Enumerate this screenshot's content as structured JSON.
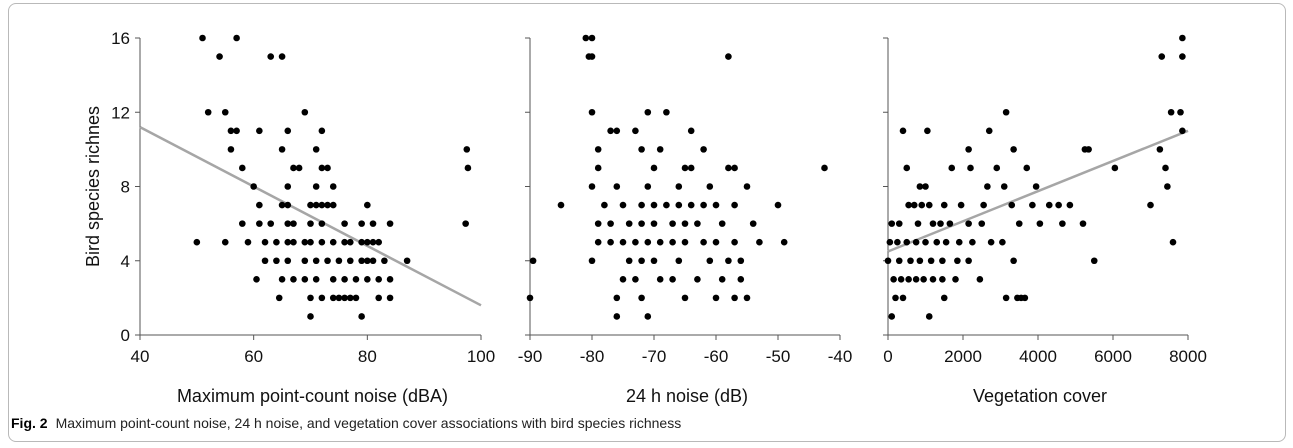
{
  "figure": {
    "caption_label": "Fig. 2",
    "caption_text": "Maximum point-count noise, 24 h noise, and vegetation cover associations with bird species richness"
  },
  "chart_data": [
    {
      "type": "scatter",
      "title": "",
      "xlabel": "Maximum point-count noise (dBA)",
      "ylabel": "Bird species richnes",
      "xlim": [
        40,
        100
      ],
      "ylim": [
        0,
        16
      ],
      "xticks": [
        40,
        60,
        80,
        100
      ],
      "yticks": [
        0,
        4,
        8,
        12,
        16
      ],
      "trend_line": [
        [
          40,
          11.2
        ],
        [
          100,
          1.6
        ]
      ],
      "colors": {
        "points": "#000000",
        "trend": "#a6a6a6"
      },
      "points": [
        [
          51,
          16
        ],
        [
          57,
          16
        ],
        [
          54,
          15
        ],
        [
          63,
          15
        ],
        [
          65,
          15
        ],
        [
          52,
          12
        ],
        [
          55,
          12
        ],
        [
          69,
          12
        ],
        [
          56,
          11
        ],
        [
          57,
          11
        ],
        [
          61,
          11
        ],
        [
          66,
          11
        ],
        [
          72,
          11
        ],
        [
          56,
          10
        ],
        [
          65,
          10
        ],
        [
          71,
          10
        ],
        [
          97.5,
          10
        ],
        [
          58,
          9
        ],
        [
          67,
          9
        ],
        [
          68,
          9
        ],
        [
          72,
          9
        ],
        [
          73,
          9
        ],
        [
          97.7,
          9
        ],
        [
          60,
          8
        ],
        [
          66,
          8
        ],
        [
          71,
          8
        ],
        [
          74,
          8
        ],
        [
          61,
          7
        ],
        [
          65,
          7
        ],
        [
          66,
          7
        ],
        [
          70,
          7
        ],
        [
          71,
          7
        ],
        [
          72,
          7
        ],
        [
          73,
          7
        ],
        [
          74,
          7
        ],
        [
          80,
          7
        ],
        [
          58,
          6
        ],
        [
          61,
          6
        ],
        [
          63,
          6
        ],
        [
          66,
          6
        ],
        [
          67,
          6
        ],
        [
          70,
          6
        ],
        [
          72,
          6
        ],
        [
          76,
          6
        ],
        [
          79,
          6
        ],
        [
          81,
          6
        ],
        [
          84,
          6
        ],
        [
          97.3,
          6
        ],
        [
          50,
          5
        ],
        [
          55,
          5
        ],
        [
          59,
          5
        ],
        [
          62,
          5
        ],
        [
          64,
          5
        ],
        [
          66,
          5
        ],
        [
          67,
          5
        ],
        [
          69,
          5
        ],
        [
          70,
          5
        ],
        [
          72,
          5
        ],
        [
          74,
          5
        ],
        [
          76,
          5
        ],
        [
          77,
          5
        ],
        [
          79,
          5
        ],
        [
          80,
          5
        ],
        [
          81,
          5
        ],
        [
          82,
          5
        ],
        [
          62,
          4
        ],
        [
          64,
          4
        ],
        [
          66,
          4
        ],
        [
          69,
          4
        ],
        [
          71,
          4
        ],
        [
          73,
          4
        ],
        [
          75,
          4
        ],
        [
          77,
          4
        ],
        [
          79,
          4
        ],
        [
          80,
          4
        ],
        [
          81,
          4
        ],
        [
          83,
          4
        ],
        [
          87,
          4
        ],
        [
          60.5,
          3
        ],
        [
          65,
          3
        ],
        [
          67,
          3
        ],
        [
          69,
          3
        ],
        [
          71,
          3
        ],
        [
          74,
          3
        ],
        [
          76,
          3
        ],
        [
          78,
          3
        ],
        [
          80,
          3
        ],
        [
          82,
          3
        ],
        [
          84,
          3
        ],
        [
          64.5,
          2
        ],
        [
          70,
          2
        ],
        [
          72,
          2
        ],
        [
          74,
          2
        ],
        [
          75,
          2
        ],
        [
          76,
          2
        ],
        [
          77,
          2
        ],
        [
          78,
          2
        ],
        [
          82,
          2
        ],
        [
          84,
          2
        ],
        [
          70,
          1
        ],
        [
          79,
          1
        ]
      ]
    },
    {
      "type": "scatter",
      "title": "",
      "xlabel": "24 h noise (dB)",
      "ylabel": "",
      "xlim": [
        -90,
        -40
      ],
      "ylim": [
        0,
        16
      ],
      "xticks": [
        -90,
        -80,
        -70,
        -60,
        -50,
        -40
      ],
      "yticks": [
        0,
        4,
        8,
        12,
        16
      ],
      "colors": {
        "points": "#000000"
      },
      "points": [
        [
          -81,
          16
        ],
        [
          -80,
          16
        ],
        [
          -80.5,
          15
        ],
        [
          -80,
          15
        ],
        [
          -58,
          15
        ],
        [
          -80,
          12
        ],
        [
          -71,
          12
        ],
        [
          -68,
          12
        ],
        [
          -77,
          11
        ],
        [
          -76,
          11
        ],
        [
          -73,
          11
        ],
        [
          -64,
          11
        ],
        [
          -79,
          10
        ],
        [
          -72,
          10
        ],
        [
          -69,
          10
        ],
        [
          -62,
          10
        ],
        [
          -79,
          9
        ],
        [
          -70,
          9
        ],
        [
          -65,
          9
        ],
        [
          -64,
          9
        ],
        [
          -58,
          9
        ],
        [
          -57,
          9
        ],
        [
          -42.5,
          9
        ],
        [
          -80,
          8
        ],
        [
          -76,
          8
        ],
        [
          -71,
          8
        ],
        [
          -66,
          8
        ],
        [
          -61,
          8
        ],
        [
          -55,
          8
        ],
        [
          -85,
          7
        ],
        [
          -78,
          7
        ],
        [
          -75,
          7
        ],
        [
          -72,
          7
        ],
        [
          -70,
          7
        ],
        [
          -68,
          7
        ],
        [
          -66,
          7
        ],
        [
          -64,
          7
        ],
        [
          -62,
          7
        ],
        [
          -60,
          7
        ],
        [
          -57,
          7
        ],
        [
          -50,
          7
        ],
        [
          -79,
          6
        ],
        [
          -77,
          6
        ],
        [
          -74,
          6
        ],
        [
          -72,
          6
        ],
        [
          -70,
          6
        ],
        [
          -67,
          6
        ],
        [
          -65,
          6
        ],
        [
          -63,
          6
        ],
        [
          -59,
          6
        ],
        [
          -54,
          6
        ],
        [
          -79,
          5
        ],
        [
          -77,
          5
        ],
        [
          -75,
          5
        ],
        [
          -73,
          5
        ],
        [
          -71,
          5
        ],
        [
          -69,
          5
        ],
        [
          -67,
          5
        ],
        [
          -65,
          5
        ],
        [
          -62,
          5
        ],
        [
          -60,
          5
        ],
        [
          -57,
          5
        ],
        [
          -53,
          5
        ],
        [
          -49,
          5
        ],
        [
          -89.5,
          4
        ],
        [
          -80,
          4
        ],
        [
          -74,
          4
        ],
        [
          -72,
          4
        ],
        [
          -70,
          4
        ],
        [
          -66,
          4
        ],
        [
          -61,
          4
        ],
        [
          -58,
          4
        ],
        [
          -56,
          4
        ],
        [
          -75,
          3
        ],
        [
          -73,
          3
        ],
        [
          -69,
          3
        ],
        [
          -67,
          3
        ],
        [
          -63,
          3
        ],
        [
          -59,
          3
        ],
        [
          -56,
          3
        ],
        [
          -90,
          2
        ],
        [
          -76,
          2
        ],
        [
          -72,
          2
        ],
        [
          -65,
          2
        ],
        [
          -60,
          2
        ],
        [
          -57,
          2
        ],
        [
          -55,
          2
        ],
        [
          -76,
          1
        ],
        [
          -71,
          1
        ]
      ]
    },
    {
      "type": "scatter",
      "title": "",
      "xlabel": "Vegetation cover",
      "ylabel": "",
      "xlim": [
        0,
        8000
      ],
      "ylim": [
        0,
        16
      ],
      "xticks": [
        0,
        2000,
        4000,
        6000,
        8000
      ],
      "yticks": [
        0,
        4,
        8,
        12,
        16
      ],
      "trend_line": [
        [
          0,
          4.5
        ],
        [
          8000,
          11.0
        ]
      ],
      "colors": {
        "points": "#000000",
        "trend": "#a6a6a6"
      },
      "points": [
        [
          7850,
          16
        ],
        [
          7300,
          15
        ],
        [
          7850,
          15
        ],
        [
          7550,
          12
        ],
        [
          7800,
          12
        ],
        [
          3150,
          12
        ],
        [
          7850,
          11
        ],
        [
          400,
          11
        ],
        [
          1050,
          11
        ],
        [
          2700,
          11
        ],
        [
          7250,
          10
        ],
        [
          2150,
          10
        ],
        [
          3350,
          10
        ],
        [
          5250,
          10
        ],
        [
          5350,
          10
        ],
        [
          500,
          9
        ],
        [
          1700,
          9
        ],
        [
          2200,
          9
        ],
        [
          2900,
          9
        ],
        [
          3700,
          9
        ],
        [
          6050,
          9
        ],
        [
          7400,
          9
        ],
        [
          850,
          8
        ],
        [
          1000,
          8
        ],
        [
          2650,
          8
        ],
        [
          3100,
          8
        ],
        [
          3950,
          8
        ],
        [
          7450,
          8
        ],
        [
          550,
          7
        ],
        [
          700,
          7
        ],
        [
          900,
          7
        ],
        [
          1100,
          7
        ],
        [
          1500,
          7
        ],
        [
          1950,
          7
        ],
        [
          2550,
          7
        ],
        [
          3300,
          7
        ],
        [
          3850,
          7
        ],
        [
          4300,
          7
        ],
        [
          4550,
          7
        ],
        [
          4850,
          7
        ],
        [
          7000,
          7
        ],
        [
          100,
          6
        ],
        [
          300,
          6
        ],
        [
          800,
          6
        ],
        [
          1200,
          6
        ],
        [
          1400,
          6
        ],
        [
          1650,
          6
        ],
        [
          2150,
          6
        ],
        [
          2500,
          6
        ],
        [
          3500,
          6
        ],
        [
          4050,
          6
        ],
        [
          4650,
          6
        ],
        [
          5200,
          6
        ],
        [
          50,
          5
        ],
        [
          250,
          5
        ],
        [
          500,
          5
        ],
        [
          750,
          5
        ],
        [
          1000,
          5
        ],
        [
          1300,
          5
        ],
        [
          1550,
          5
        ],
        [
          1900,
          5
        ],
        [
          2250,
          5
        ],
        [
          2750,
          5
        ],
        [
          3050,
          5
        ],
        [
          7600,
          5
        ],
        [
          0,
          4
        ],
        [
          300,
          4
        ],
        [
          600,
          4
        ],
        [
          850,
          4
        ],
        [
          1150,
          4
        ],
        [
          1450,
          4
        ],
        [
          1850,
          4
        ],
        [
          2150,
          4
        ],
        [
          3350,
          4
        ],
        [
          5500,
          4
        ],
        [
          150,
          3
        ],
        [
          350,
          3
        ],
        [
          550,
          3
        ],
        [
          750,
          3
        ],
        [
          950,
          3
        ],
        [
          1200,
          3
        ],
        [
          1450,
          3
        ],
        [
          1800,
          3
        ],
        [
          2450,
          3
        ],
        [
          200,
          2
        ],
        [
          400,
          2
        ],
        [
          1500,
          2
        ],
        [
          3150,
          2
        ],
        [
          3450,
          2
        ],
        [
          3550,
          2
        ],
        [
          3650,
          2
        ],
        [
          100,
          1
        ],
        [
          1100,
          1
        ]
      ]
    }
  ]
}
